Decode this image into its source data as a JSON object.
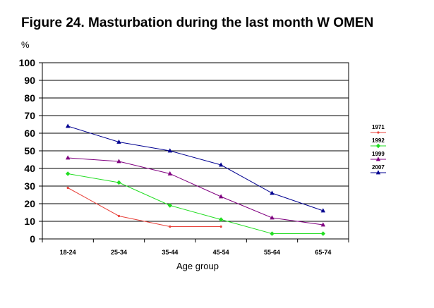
{
  "chart_data": {
    "type": "line",
    "title": "Figure 24. Masturbation during the last month W OMEN",
    "ylabel": "%",
    "xlabel": "Age group",
    "categories": [
      "18-24",
      "25-34",
      "35-44",
      "45-54",
      "55-64",
      "65-74"
    ],
    "yticks": [
      "0",
      "10",
      "20",
      "30",
      "40",
      "50",
      "60",
      "70",
      "80",
      "90",
      "100"
    ],
    "ylim": [
      0,
      100
    ],
    "grid": "horizontal",
    "legend_position": "right",
    "series": [
      {
        "name": "1971",
        "color": "#e8413a",
        "marker": "dot",
        "values": [
          29,
          13,
          7,
          7,
          null,
          null
        ]
      },
      {
        "name": "1992",
        "color": "#22dd22",
        "marker": "diamond",
        "values": [
          37,
          32,
          19,
          11,
          3,
          3
        ]
      },
      {
        "name": "1999",
        "color": "#800080",
        "marker": "triangle",
        "values": [
          46,
          44,
          37,
          24,
          12,
          8
        ]
      },
      {
        "name": "2007",
        "color": "#000090",
        "marker": "triangle",
        "values": [
          64,
          55,
          50,
          42,
          26,
          16
        ]
      }
    ]
  }
}
